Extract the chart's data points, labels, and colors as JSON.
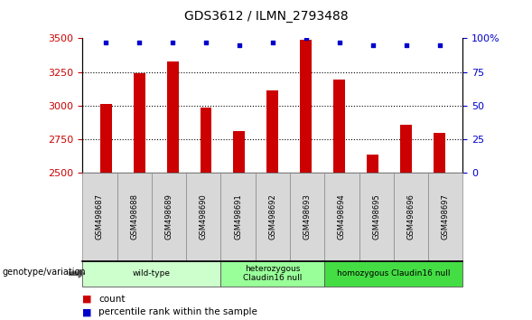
{
  "title": "GDS3612 / ILMN_2793488",
  "samples": [
    "GSM498687",
    "GSM498688",
    "GSM498689",
    "GSM498690",
    "GSM498691",
    "GSM498692",
    "GSM498693",
    "GSM498694",
    "GSM498695",
    "GSM498696",
    "GSM498697"
  ],
  "counts": [
    3010,
    3240,
    3330,
    2985,
    2810,
    3110,
    3490,
    3195,
    2635,
    2860,
    2800
  ],
  "percentile_ranks": [
    97,
    97,
    97,
    97,
    95,
    97,
    100,
    97,
    95,
    95,
    95
  ],
  "ylim_left": [
    2500,
    3500
  ],
  "ylim_right": [
    0,
    100
  ],
  "yticks_left": [
    2500,
    2750,
    3000,
    3250,
    3500
  ],
  "yticks_right": [
    0,
    25,
    50,
    75,
    100
  ],
  "bar_color": "#cc0000",
  "dot_color": "#0000cc",
  "bar_width": 0.35,
  "groups": [
    {
      "label": "wild-type",
      "start": 0,
      "end": 3,
      "color": "#ccffcc"
    },
    {
      "label": "heterozygous\nClaudin16 null",
      "start": 4,
      "end": 6,
      "color": "#99ff99"
    },
    {
      "label": "homozygous Claudin16 null",
      "start": 7,
      "end": 10,
      "color": "#44dd44"
    }
  ],
  "genotype_label": "genotype/variation",
  "legend_count_label": "count",
  "legend_percentile_label": "percentile rank within the sample",
  "tick_label_color_left": "#cc0000",
  "tick_label_color_right": "#0000cc",
  "sample_box_color": "#d8d8d8",
  "sample_box_edge": "#888888"
}
